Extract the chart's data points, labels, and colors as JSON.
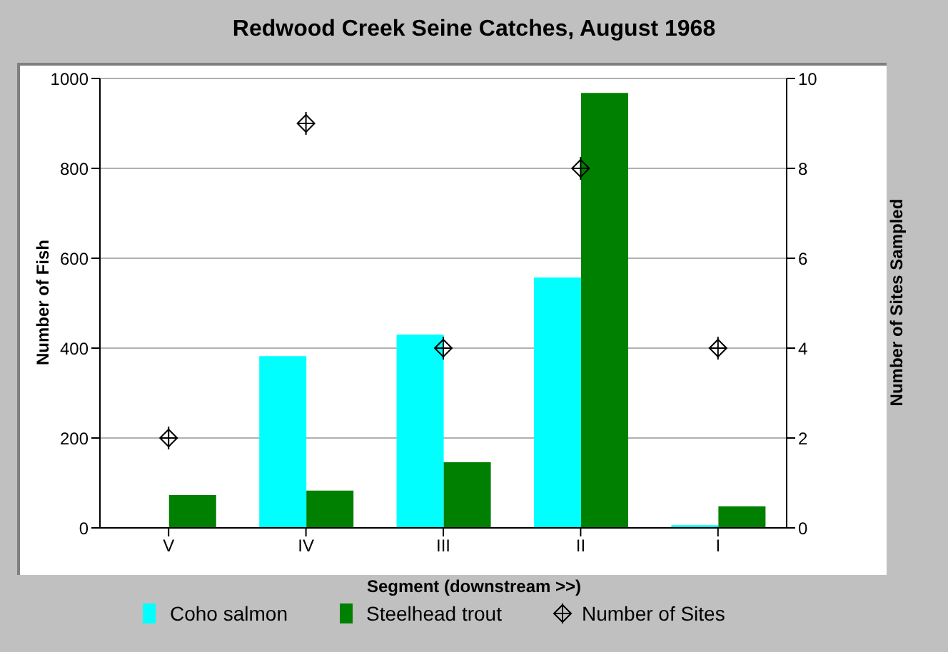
{
  "chart_data": {
    "type": "bar",
    "title": "Redwood Creek Seine Catches, August 1968",
    "xlabel": "Segment (downstream >>)",
    "ylabel": "Number of Fish",
    "y2label": "Number of Sites Sampled",
    "categories": [
      "V",
      "IV",
      "III",
      "II",
      "I"
    ],
    "series": [
      {
        "name": "Coho salmon",
        "color": "#00ffff",
        "values": [
          0,
          382,
          430,
          557,
          6
        ]
      },
      {
        "name": "Steelhead trout",
        "color": "#008000",
        "values": [
          73,
          83,
          146,
          968,
          48
        ]
      },
      {
        "name": "Number of Sites",
        "type": "scatter",
        "axis": "y2",
        "color": "#000000",
        "marker": "diamond",
        "values": [
          2,
          9,
          4,
          8,
          4
        ]
      }
    ],
    "ylim": [
      0,
      1000
    ],
    "yticks": [
      0,
      200,
      400,
      600,
      800,
      1000
    ],
    "y2lim": [
      0,
      10
    ],
    "y2ticks": [
      0,
      2,
      4,
      6,
      8,
      10
    ],
    "grid": "y",
    "legend": "bottom"
  }
}
